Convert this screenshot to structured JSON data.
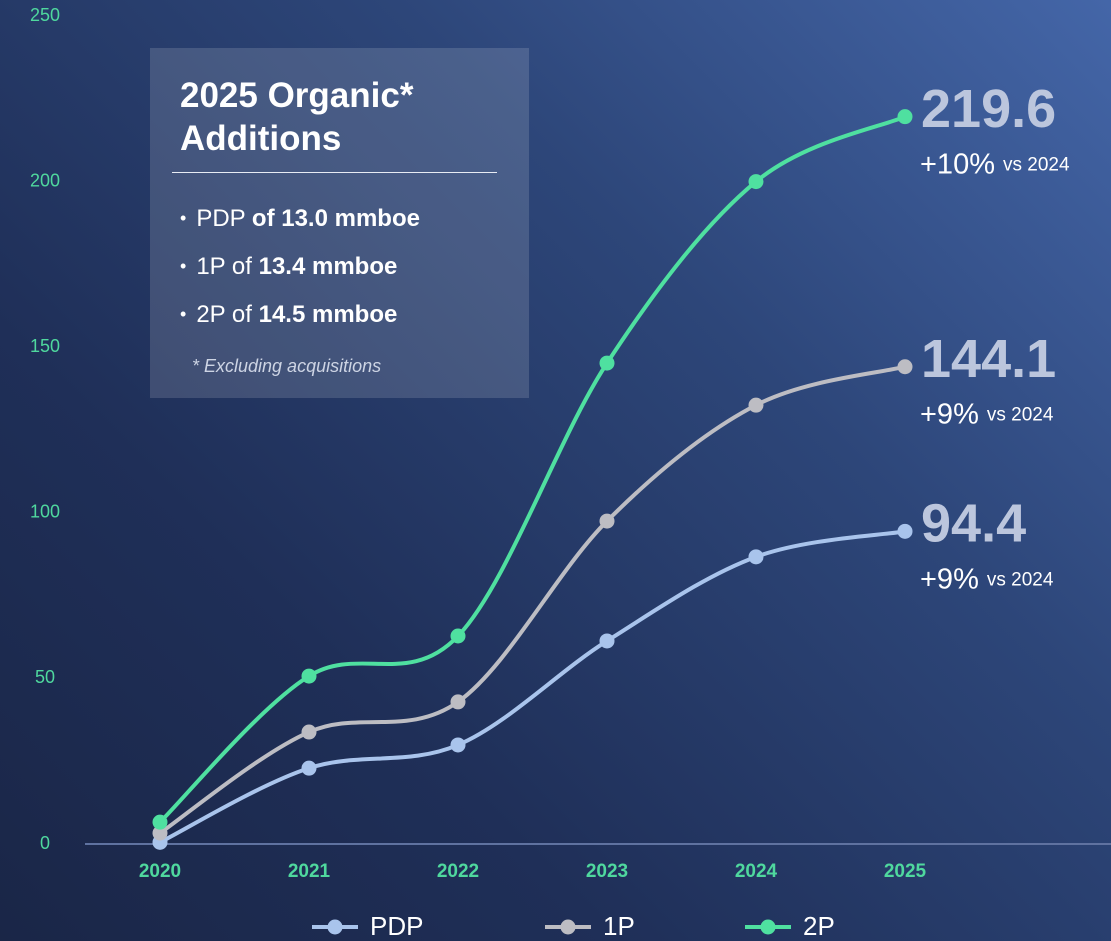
{
  "chart_data": {
    "type": "line",
    "categories": [
      "2020",
      "2021",
      "2022",
      "2023",
      "2024",
      "2025"
    ],
    "ylim": [
      0,
      250
    ],
    "yticks": [
      0,
      50,
      100,
      150,
      200,
      250
    ],
    "grid": false,
    "legend": "bottom",
    "series": [
      {
        "name": "PDP",
        "color": "#a9c4ec",
        "values": [
          0.5,
          22.9,
          29.9,
          61.3,
          86.7,
          94.4
        ],
        "change_label": "+9%",
        "change_note": "vs 2024"
      },
      {
        "name": "1P",
        "color": "#bdbdc3",
        "values": [
          3.3,
          33.8,
          42.9,
          97.5,
          132.5,
          144.1
        ],
        "change_label": "+9%",
        "change_note": "vs 2024"
      },
      {
        "name": "2P",
        "color": "#4fe0a0",
        "values": [
          6.6,
          50.7,
          62.8,
          145.2,
          200,
          219.6
        ],
        "change_label": "+10%",
        "change_note": "vs 2024"
      }
    ]
  },
  "info_box": {
    "title": "2025 Organic* Additions",
    "bullets": [
      [
        {
          "text": "PDP",
          "bold": false
        },
        {
          "text": "of 13.0 mmboe",
          "bold": true
        }
      ],
      [
        {
          "text": "1P of",
          "bold": false
        },
        {
          "text": "13.4 mmboe",
          "bold": true
        }
      ],
      [
        {
          "text": "2P of",
          "bold": false
        },
        {
          "text": "14.5 mmboe",
          "bold": true
        }
      ]
    ],
    "footnote": "* Excluding acquisitions"
  }
}
